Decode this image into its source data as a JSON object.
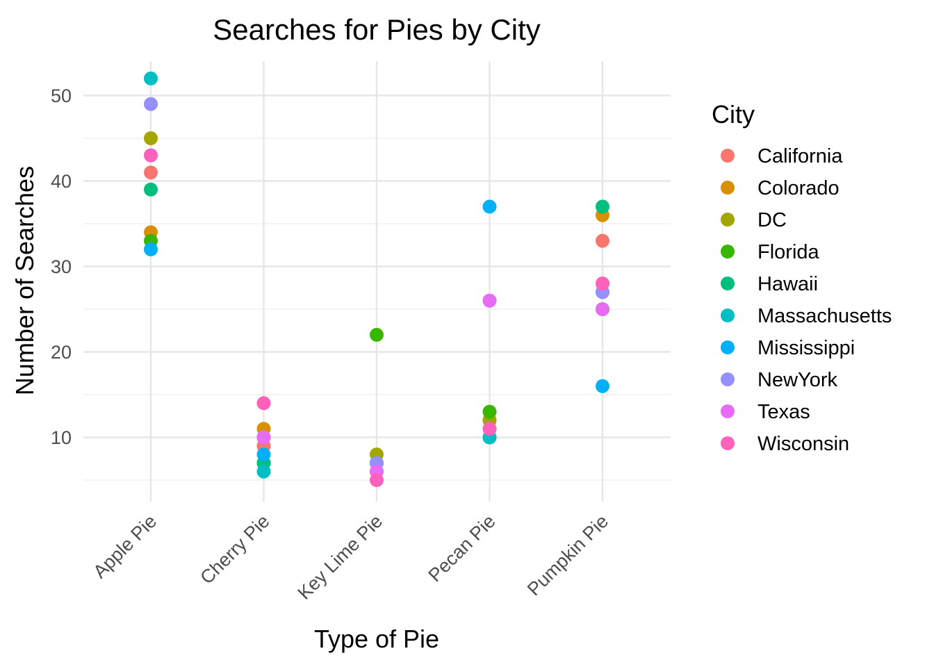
{
  "chart_data": {
    "type": "scatter",
    "title": "Searches for Pies by City",
    "xlabel": "Type of Pie",
    "ylabel": "Number of Searches",
    "categories": [
      "Apple Pie",
      "Cherry Pie",
      "Key Lime Pie",
      "Pecan Pie",
      "Pumpkin Pie"
    ],
    "ylim": [
      3.5,
      54
    ],
    "yticks": [
      10,
      20,
      30,
      40,
      50
    ],
    "grid": true,
    "legend": {
      "title": "City",
      "position": "right"
    },
    "series": [
      {
        "name": "California",
        "color": "#F8766D",
        "values": [
          41,
          9,
          6,
          11,
          33
        ]
      },
      {
        "name": "Colorado",
        "color": "#D89000",
        "values": [
          34,
          11,
          6,
          12,
          36
        ]
      },
      {
        "name": "DC",
        "color": "#A3A500",
        "values": [
          45,
          10,
          8,
          12,
          28
        ]
      },
      {
        "name": "Florida",
        "color": "#39B600",
        "values": [
          33,
          7,
          22,
          13,
          25
        ]
      },
      {
        "name": "Hawaii",
        "color": "#00BF7D",
        "values": [
          39,
          7,
          7,
          10,
          37
        ]
      },
      {
        "name": "Massachusetts",
        "color": "#00BFC4",
        "values": [
          52,
          6,
          7,
          10,
          27
        ]
      },
      {
        "name": "Mississippi",
        "color": "#00B0F6",
        "values": [
          32,
          8,
          7,
          37,
          16
        ]
      },
      {
        "name": "NewYork",
        "color": "#9590FF",
        "values": [
          49,
          10,
          7,
          26,
          27
        ]
      },
      {
        "name": "Texas",
        "color": "#E76BF3",
        "values": [
          43,
          10,
          6,
          26,
          25
        ]
      },
      {
        "name": "Wisconsin",
        "color": "#FF62BC",
        "values": [
          43,
          14,
          5,
          11,
          28
        ]
      }
    ]
  }
}
